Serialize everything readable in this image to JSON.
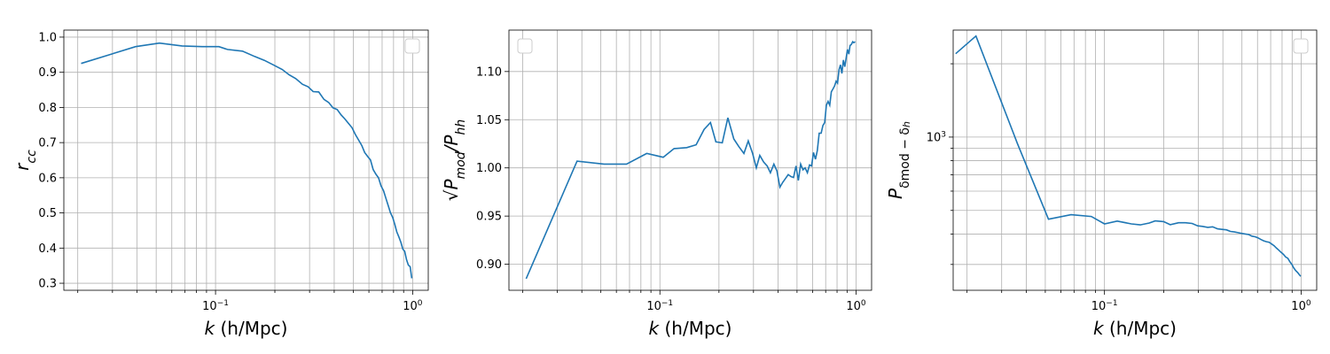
{
  "chart_data": [
    {
      "type": "line",
      "xscale": "log",
      "yscale": "linear",
      "xlim": [
        0.017,
        1.2
      ],
      "ylim": [
        0.28,
        1.02
      ],
      "xlabel_italic": "k",
      "xlabel_rest": " (h/Mpc)",
      "ylabel": "r_cc",
      "ylabel_parts": [
        {
          "t": "r",
          "sub": false
        },
        {
          "t": "cc",
          "sub": true
        }
      ],
      "grid": true,
      "legend": "top-right",
      "yticks": [
        {
          "v": 0.3,
          "label": "0.3"
        },
        {
          "v": 0.4,
          "label": "0.4"
        },
        {
          "v": 0.5,
          "label": "0.5"
        },
        {
          "v": 0.6,
          "label": "0.6"
        },
        {
          "v": 0.7,
          "label": "0.7"
        },
        {
          "v": 0.8,
          "label": "0.8"
        },
        {
          "v": 0.9,
          "label": "0.9"
        },
        {
          "v": 1.0,
          "label": "1.0"
        }
      ],
      "ygrid_minor": [],
      "xticks": [
        {
          "v": 0.1,
          "base": "10",
          "exp": "−1"
        },
        {
          "v": 1.0,
          "base": "10",
          "exp": "0"
        }
      ],
      "series": [
        {
          "name": "r_cc",
          "color": "#1f77b4",
          "x": [
            0.0208,
            0.0393,
            0.0519,
            0.0676,
            0.0857,
            0.104,
            0.115,
            0.137,
            0.158,
            0.177,
            0.198,
            0.218,
            0.236,
            0.255,
            0.276,
            0.295,
            0.313,
            0.334,
            0.355,
            0.375,
            0.394,
            0.414,
            0.433,
            0.452,
            0.472,
            0.493,
            0.511,
            0.531,
            0.552,
            0.571,
            0.592,
            0.611,
            0.631,
            0.651,
            0.671,
            0.691,
            0.712,
            0.732,
            0.751,
            0.771,
            0.792,
            0.811,
            0.831,
            0.851,
            0.872,
            0.891,
            0.911,
            0.931,
            0.951,
            0.971,
            0.99
          ],
          "y": [
            0.925,
            0.973,
            0.983,
            0.975,
            0.973,
            0.973,
            0.965,
            0.96,
            0.945,
            0.934,
            0.92,
            0.908,
            0.893,
            0.882,
            0.866,
            0.859,
            0.845,
            0.844,
            0.823,
            0.814,
            0.799,
            0.794,
            0.779,
            0.768,
            0.755,
            0.742,
            0.724,
            0.708,
            0.692,
            0.672,
            0.66,
            0.651,
            0.623,
            0.61,
            0.6,
            0.577,
            0.563,
            0.541,
            0.522,
            0.501,
            0.487,
            0.468,
            0.446,
            0.432,
            0.416,
            0.397,
            0.391,
            0.367,
            0.352,
            0.347,
            0.314
          ]
        }
      ]
    },
    {
      "type": "line",
      "xscale": "log",
      "yscale": "linear",
      "xlim": [
        0.017,
        1.2
      ],
      "ylim": [
        0.873,
        1.143
      ],
      "xlabel_italic": "k",
      "xlabel_rest": " (h/Mpc)",
      "ylabel": "√(P_mod/P_hh)",
      "ylabel_parts": [
        {
          "t": "√",
          "sub": false
        },
        {
          "t": "P",
          "sub": false
        },
        {
          "t": "mod",
          "sub": true
        },
        {
          "t": "/P",
          "sub": false
        },
        {
          "t": "hh",
          "sub": true
        }
      ],
      "grid": true,
      "legend": "top-left",
      "yticks": [
        {
          "v": 0.9,
          "label": "0.90"
        },
        {
          "v": 0.95,
          "label": "0.95"
        },
        {
          "v": 1.0,
          "label": "1.00"
        },
        {
          "v": 1.05,
          "label": "1.05"
        },
        {
          "v": 1.1,
          "label": "1.10"
        }
      ],
      "ygrid_minor": [],
      "xticks": [
        {
          "v": 0.1,
          "base": "10",
          "exp": "−1"
        },
        {
          "v": 1.0,
          "base": "10",
          "exp": "0"
        }
      ],
      "series": [
        {
          "name": "sqrt(P_mod/P_hh)",
          "color": "#1f77b4",
          "x": [
            0.0208,
            0.0378,
            0.0519,
            0.0676,
            0.0857,
            0.104,
            0.118,
            0.137,
            0.153,
            0.168,
            0.181,
            0.193,
            0.208,
            0.222,
            0.238,
            0.253,
            0.268,
            0.282,
            0.297,
            0.31,
            0.323,
            0.338,
            0.352,
            0.366,
            0.381,
            0.395,
            0.409,
            0.423,
            0.437,
            0.451,
            0.466,
            0.48,
            0.494,
            0.508,
            0.522,
            0.536,
            0.55,
            0.565,
            0.579,
            0.593,
            0.607,
            0.621,
            0.635,
            0.649,
            0.664,
            0.678,
            0.692,
            0.706,
            0.72,
            0.734,
            0.748,
            0.763,
            0.777,
            0.791,
            0.805,
            0.819,
            0.833,
            0.847,
            0.862,
            0.876,
            0.89,
            0.904,
            0.918,
            0.932,
            0.946,
            0.961,
            0.975,
            0.99
          ],
          "y": [
            0.885,
            1.007,
            1.004,
            1.004,
            1.015,
            1.011,
            1.02,
            1.021,
            1.024,
            1.04,
            1.047,
            1.027,
            1.026,
            1.052,
            1.03,
            1.022,
            1.015,
            1.028,
            1.015,
            1.0,
            1.013,
            1.006,
            1.002,
            0.995,
            1.004,
            0.997,
            0.98,
            0.985,
            0.989,
            0.993,
            0.991,
            0.99,
            1.002,
            0.987,
            1.004,
            0.998,
            1.0,
            0.995,
            1.003,
            1.002,
            1.016,
            1.009,
            1.018,
            1.036,
            1.036,
            1.044,
            1.047,
            1.065,
            1.069,
            1.065,
            1.079,
            1.082,
            1.085,
            1.09,
            1.088,
            1.102,
            1.107,
            1.098,
            1.112,
            1.105,
            1.114,
            1.123,
            1.118,
            1.127,
            1.128,
            1.131,
            1.13,
            1.131
          ]
        }
      ]
    },
    {
      "type": "line",
      "xscale": "log",
      "yscale": "log",
      "xlim": [
        0.017,
        1.2
      ],
      "ylim": [
        235,
        2750
      ],
      "xlabel_italic": "k",
      "xlabel_rest": " (h/Mpc)",
      "ylabel": "P_δmod−δ_h",
      "ylabel_parts": [
        {
          "t": "P",
          "sub": false
        },
        {
          "t": "δmod − δ",
          "sub": true
        },
        {
          "t": "h",
          "sub": "sub2"
        }
      ],
      "grid": true,
      "legend": "top-right",
      "yticks": [
        {
          "v": 1000,
          "base": "10",
          "exp": "3"
        }
      ],
      "ygrid_minor": [
        300,
        400,
        500,
        600,
        700,
        800,
        900,
        2000
      ],
      "xticks": [
        {
          "v": 0.1,
          "base": "10",
          "exp": "−1"
        },
        {
          "v": 1.0,
          "base": "10",
          "exp": "0"
        }
      ],
      "series": [
        {
          "name": "P_δmod-δh",
          "color": "#1f77b4",
          "x": [
            0.0175,
            0.0222,
            0.0361,
            0.0519,
            0.0676,
            0.0857,
            0.1,
            0.116,
            0.137,
            0.152,
            0.169,
            0.181,
            0.2,
            0.216,
            0.238,
            0.258,
            0.279,
            0.298,
            0.315,
            0.335,
            0.355,
            0.376,
            0.396,
            0.417,
            0.437,
            0.458,
            0.478,
            0.5,
            0.52,
            0.541,
            0.562,
            0.583,
            0.603,
            0.624,
            0.645,
            0.666,
            0.687,
            0.708,
            0.729,
            0.75,
            0.771,
            0.792,
            0.813,
            0.834,
            0.855,
            0.876,
            0.897,
            0.918,
            0.939,
            0.96,
            0.98,
            0.995
          ],
          "y": [
            2200,
            2600,
            940,
            460,
            480,
            472,
            440,
            452,
            440,
            436,
            444,
            453,
            450,
            437,
            445,
            445,
            442,
            432,
            430,
            426,
            428,
            420,
            418,
            416,
            410,
            408,
            405,
            402,
            400,
            398,
            392,
            390,
            386,
            380,
            375,
            372,
            370,
            364,
            358,
            350,
            343,
            336,
            330,
            322,
            318,
            308,
            300,
            290,
            283,
            278,
            272,
            268
          ]
        }
      ]
    }
  ]
}
